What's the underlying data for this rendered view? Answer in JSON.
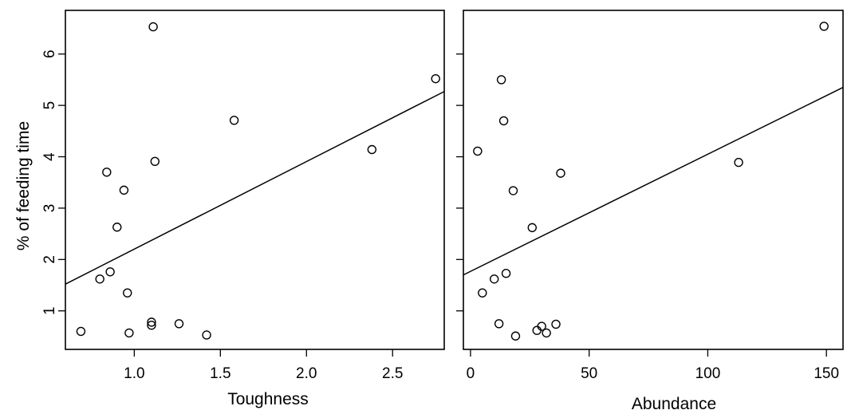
{
  "chart_data": [
    {
      "type": "scatter",
      "xlabel": "Toughness",
      "ylabel": "% of feeding time",
      "xlim": [
        0.6,
        2.8
      ],
      "ylim": [
        0.25,
        6.85
      ],
      "x_ticks": [
        1.0,
        1.5,
        2.0,
        2.5
      ],
      "x_tick_labels": [
        "1.0",
        "1.5",
        "2.0",
        "2.5"
      ],
      "y_ticks": [
        1,
        2,
        3,
        4,
        5,
        6
      ],
      "y_tick_labels": [
        "1",
        "2",
        "3",
        "4",
        "5",
        "6"
      ],
      "points": [
        {
          "x": 0.69,
          "y": 0.6
        },
        {
          "x": 0.8,
          "y": 1.62
        },
        {
          "x": 0.84,
          "y": 3.7
        },
        {
          "x": 0.86,
          "y": 1.76
        },
        {
          "x": 0.9,
          "y": 2.63
        },
        {
          "x": 0.94,
          "y": 3.35
        },
        {
          "x": 0.96,
          "y": 1.35
        },
        {
          "x": 0.97,
          "y": 0.57
        },
        {
          "x": 1.1,
          "y": 0.78
        },
        {
          "x": 1.1,
          "y": 0.72
        },
        {
          "x": 1.11,
          "y": 6.53
        },
        {
          "x": 1.12,
          "y": 3.91
        },
        {
          "x": 1.26,
          "y": 0.75
        },
        {
          "x": 1.42,
          "y": 0.53
        },
        {
          "x": 1.58,
          "y": 4.71
        },
        {
          "x": 2.38,
          "y": 4.14
        },
        {
          "x": 2.75,
          "y": 5.52
        }
      ],
      "fit_line": {
        "x": [
          0.6,
          2.8
        ],
        "y": [
          1.52,
          5.27
        ]
      }
    },
    {
      "type": "scatter",
      "xlabel": "Abundance",
      "ylabel": "",
      "xlim": [
        -3,
        157
      ],
      "ylim": [
        0.25,
        6.85
      ],
      "x_ticks": [
        0,
        50,
        100,
        150
      ],
      "x_tick_labels": [
        "0",
        "50",
        "100",
        "150"
      ],
      "y_ticks": [
        1,
        2,
        3,
        4,
        5,
        6
      ],
      "y_tick_labels": [],
      "points": [
        {
          "x": 3,
          "y": 4.11
        },
        {
          "x": 5,
          "y": 1.35
        },
        {
          "x": 10,
          "y": 1.62
        },
        {
          "x": 12,
          "y": 0.75
        },
        {
          "x": 13,
          "y": 5.5
        },
        {
          "x": 14,
          "y": 4.7
        },
        {
          "x": 15,
          "y": 1.73
        },
        {
          "x": 18,
          "y": 3.34
        },
        {
          "x": 19,
          "y": 0.51
        },
        {
          "x": 26,
          "y": 2.62
        },
        {
          "x": 28,
          "y": 0.62
        },
        {
          "x": 30,
          "y": 0.7
        },
        {
          "x": 32,
          "y": 0.57
        },
        {
          "x": 36,
          "y": 0.74
        },
        {
          "x": 38,
          "y": 3.68
        },
        {
          "x": 113,
          "y": 3.89
        },
        {
          "x": 149,
          "y": 6.54
        }
      ],
      "fit_line": {
        "x": [
          -3,
          157
        ],
        "y": [
          1.7,
          5.35
        ]
      }
    }
  ]
}
